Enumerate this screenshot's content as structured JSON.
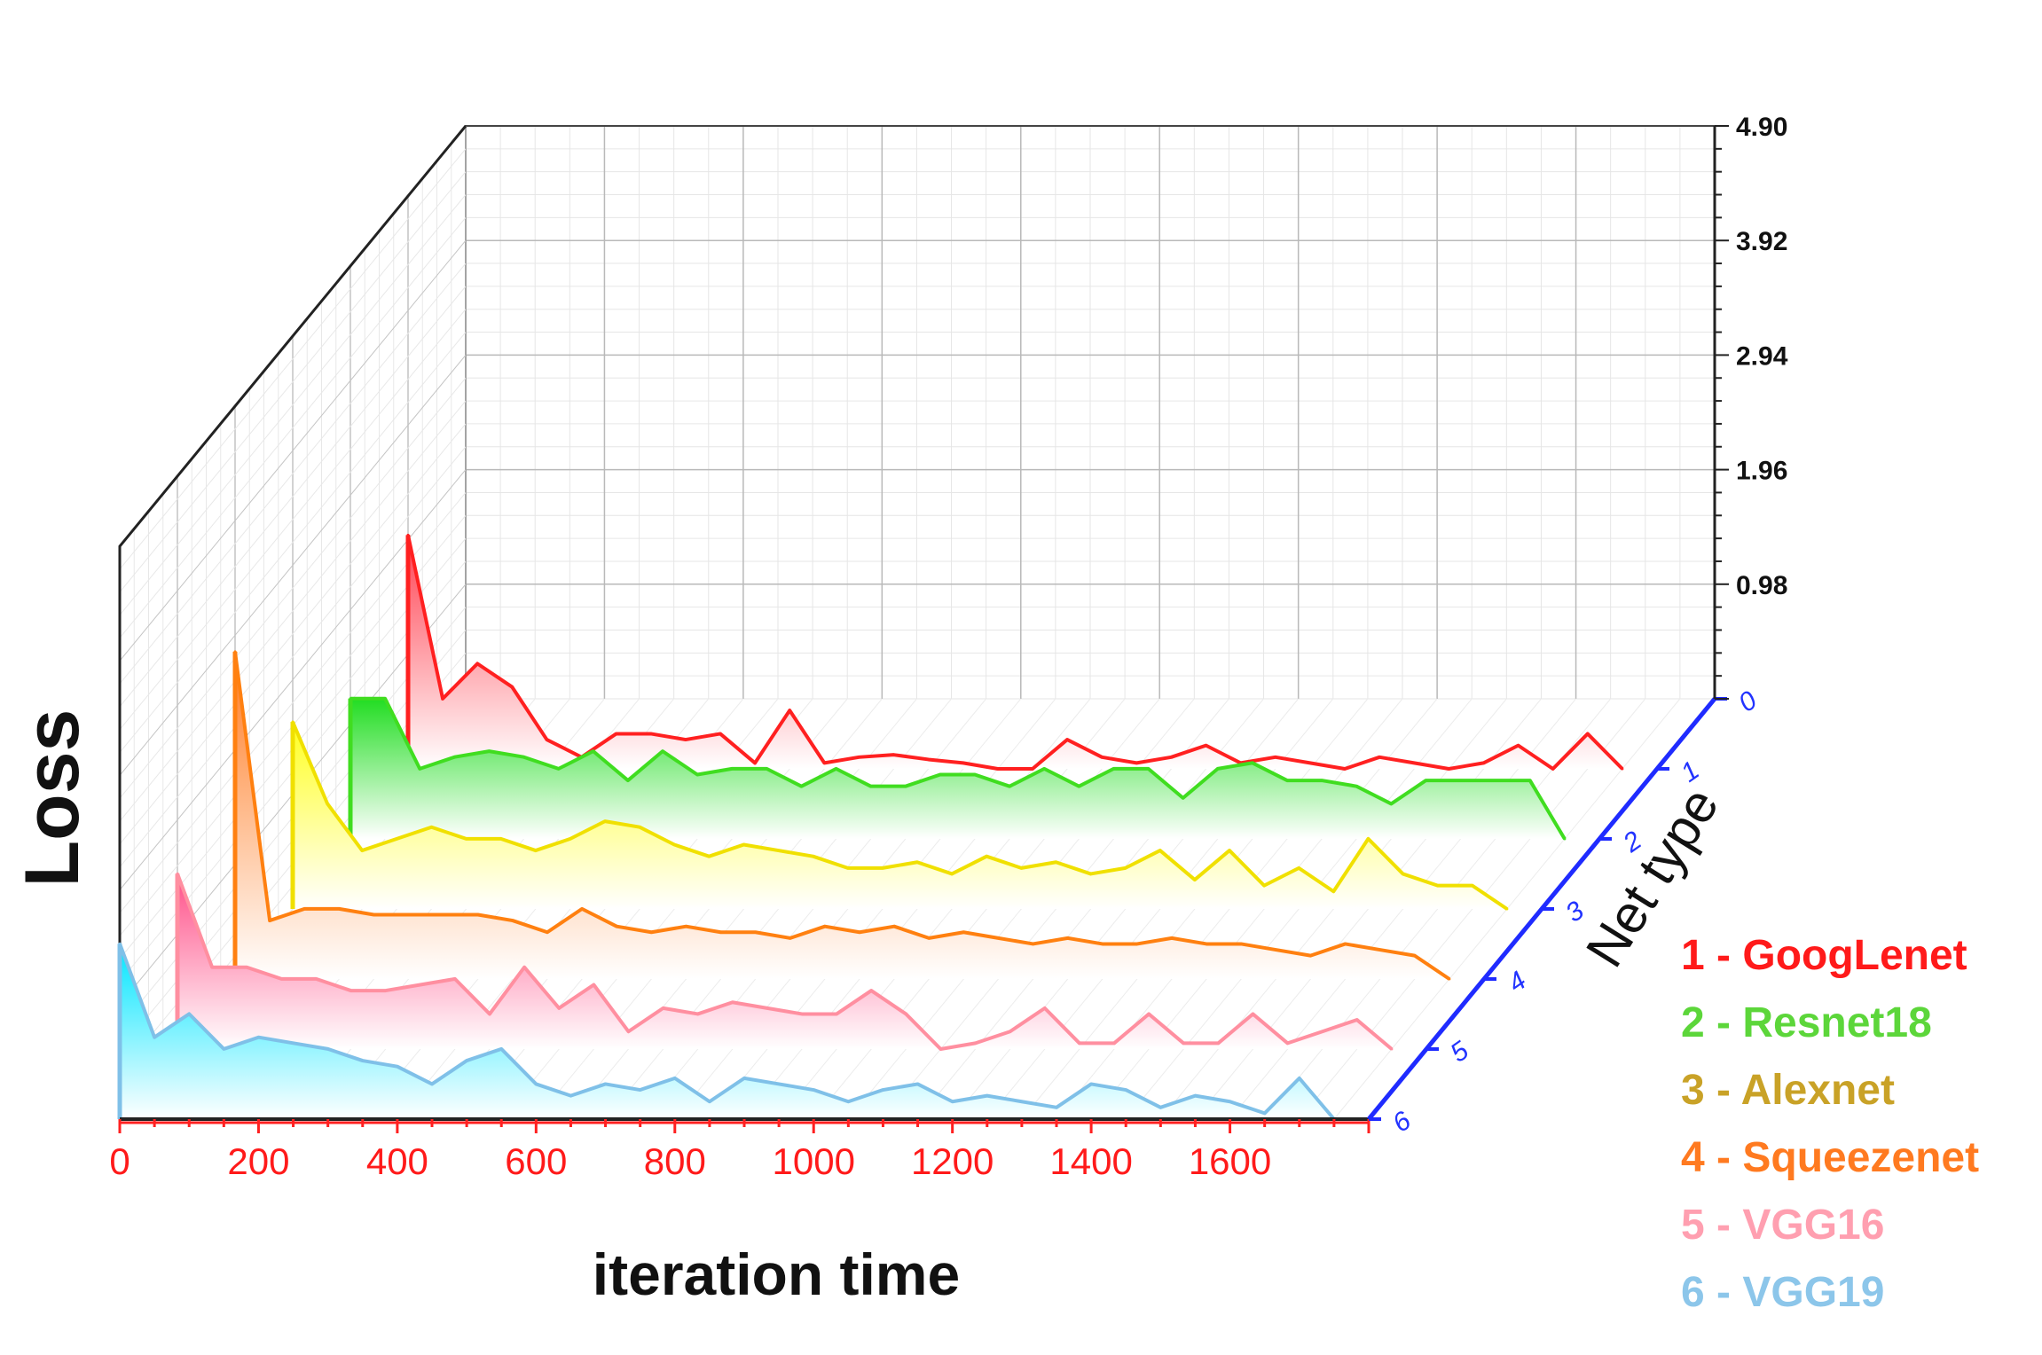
{
  "chart_data": {
    "type": "area",
    "title": "",
    "xlabel": "iteration time",
    "ylabel": "Loss",
    "zlabel": "Net type",
    "x_ticks": [
      0,
      200,
      400,
      600,
      800,
      1000,
      1200,
      1400,
      1600
    ],
    "x_tick_labels": [
      "0",
      "200",
      "400",
      "600",
      "800",
      "1000",
      "1200",
      "1400",
      "1600"
    ],
    "xlim": [
      0,
      1800
    ],
    "y_ticks": [
      0.98,
      1.96,
      2.94,
      3.92,
      4.9
    ],
    "y_tick_labels": [
      "0.98",
      "1.96",
      "2.94",
      "3.92",
      "4.90"
    ],
    "ylim": [
      0,
      4.9
    ],
    "z_ticks": [
      0,
      1,
      2,
      3,
      4,
      5,
      6
    ],
    "z_tick_labels": [
      "0",
      "1",
      "2",
      "3",
      "4",
      "5",
      "6"
    ],
    "grid": true,
    "projection": "3d-waterfall",
    "legend_position": "bottom-right",
    "x": [
      0,
      50,
      100,
      150,
      200,
      250,
      300,
      350,
      400,
      450,
      500,
      550,
      600,
      650,
      700,
      750,
      800,
      850,
      900,
      950,
      1000,
      1050,
      1100,
      1150,
      1200,
      1250,
      1300,
      1350,
      1400,
      1450,
      1500,
      1550,
      1600,
      1650,
      1700,
      1750
    ],
    "series": [
      {
        "name": "1 - GoogLenet",
        "z": 1,
        "color": "#ff2020",
        "fill": "#ff4050",
        "values": [
          2.0,
          0.6,
          0.9,
          0.7,
          0.25,
          0.1,
          0.3,
          0.3,
          0.25,
          0.3,
          0.05,
          0.5,
          0.05,
          0.1,
          0.12,
          0.08,
          0.05,
          0.0,
          0.0,
          0.25,
          0.1,
          0.05,
          0.1,
          0.2,
          0.05,
          0.1,
          0.05,
          0.0,
          0.1,
          0.05,
          0.0,
          0.05,
          0.2,
          0.0,
          0.3,
          0.0
        ]
      },
      {
        "name": "2 - Resnet18",
        "z": 2,
        "color": "#40dd20",
        "fill": "#22dd22",
        "values": [
          1.2,
          1.2,
          0.6,
          0.7,
          0.75,
          0.7,
          0.6,
          0.75,
          0.5,
          0.75,
          0.55,
          0.6,
          0.6,
          0.45,
          0.6,
          0.45,
          0.45,
          0.55,
          0.55,
          0.45,
          0.6,
          0.45,
          0.6,
          0.6,
          0.35,
          0.6,
          0.65,
          0.5,
          0.5,
          0.45,
          0.3,
          0.5,
          0.5,
          0.5,
          0.5,
          0.0
        ]
      },
      {
        "name": "3 - Alexnet",
        "z": 3,
        "color": "#f0e000",
        "fill": "#ffff20",
        "values": [
          1.6,
          0.9,
          0.5,
          0.6,
          0.7,
          0.6,
          0.6,
          0.5,
          0.6,
          0.75,
          0.7,
          0.55,
          0.45,
          0.55,
          0.5,
          0.45,
          0.35,
          0.35,
          0.4,
          0.3,
          0.45,
          0.35,
          0.4,
          0.3,
          0.35,
          0.5,
          0.25,
          0.5,
          0.2,
          0.35,
          0.15,
          0.6,
          0.3,
          0.2,
          0.2,
          0.0
        ]
      },
      {
        "name": "4 - Squeezenet",
        "z": 4,
        "color": "#ff8010",
        "fill": "#ff7a20",
        "values": [
          2.8,
          0.5,
          0.6,
          0.6,
          0.55,
          0.55,
          0.55,
          0.55,
          0.5,
          0.4,
          0.6,
          0.45,
          0.4,
          0.45,
          0.4,
          0.4,
          0.35,
          0.45,
          0.4,
          0.45,
          0.35,
          0.4,
          0.35,
          0.3,
          0.35,
          0.3,
          0.3,
          0.35,
          0.3,
          0.3,
          0.25,
          0.2,
          0.3,
          0.25,
          0.2,
          0.0
        ]
      },
      {
        "name": "5 - VGG16",
        "z": 5,
        "color": "#ff8fa0",
        "fill": "#ff4f88",
        "values": [
          1.5,
          0.7,
          0.7,
          0.6,
          0.6,
          0.5,
          0.5,
          0.55,
          0.6,
          0.3,
          0.7,
          0.35,
          0.55,
          0.15,
          0.35,
          0.3,
          0.4,
          0.35,
          0.3,
          0.3,
          0.5,
          0.3,
          0.0,
          0.05,
          0.15,
          0.35,
          0.05,
          0.05,
          0.3,
          0.05,
          0.05,
          0.3,
          0.05,
          0.15,
          0.25,
          0.0
        ]
      },
      {
        "name": "6 - VGG19",
        "z": 6,
        "color": "#7fc0e8",
        "fill": "#00e5ff",
        "values": [
          1.5,
          0.7,
          0.9,
          0.6,
          0.7,
          0.65,
          0.6,
          0.5,
          0.45,
          0.3,
          0.5,
          0.6,
          0.3,
          0.2,
          0.3,
          0.25,
          0.35,
          0.15,
          0.35,
          0.3,
          0.25,
          0.15,
          0.25,
          0.3,
          0.15,
          0.2,
          0.15,
          0.1,
          0.3,
          0.25,
          0.1,
          0.2,
          0.15,
          0.05,
          0.35,
          0.0
        ]
      }
    ]
  }
}
